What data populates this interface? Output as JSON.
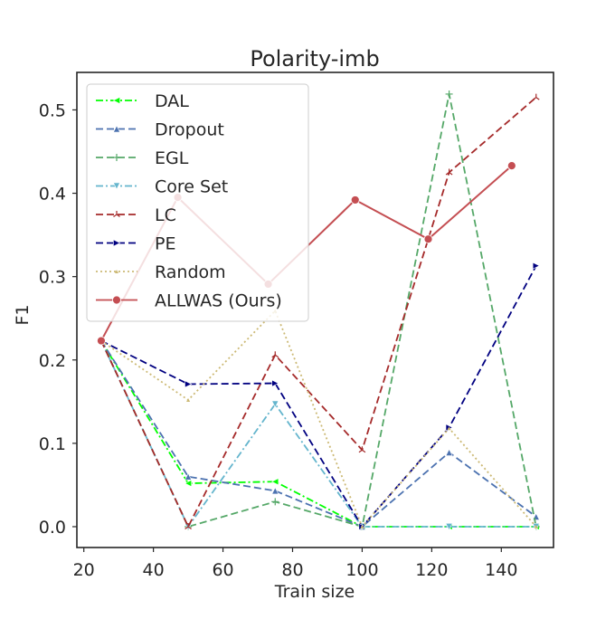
{
  "chart_data": {
    "type": "line",
    "title": "Polarity-imb",
    "xlabel": "Train size",
    "ylabel": "F1",
    "xlim": [
      18,
      155
    ],
    "ylim": [
      -0.025,
      0.545
    ],
    "xticks": [
      20,
      40,
      60,
      80,
      100,
      120,
      140
    ],
    "yticks": [
      0.0,
      0.1,
      0.2,
      0.3,
      0.4,
      0.5
    ],
    "ytick_labels": [
      "0.0",
      "0.1",
      "0.2",
      "0.3",
      "0.4",
      "0.5"
    ],
    "grid": false,
    "legend_position": "upper-left",
    "series": [
      {
        "name": "DAL",
        "color": "#00ff00",
        "dash": "dashdot",
        "marker": "triangle-left",
        "x": [
          25,
          50,
          75,
          100,
          125,
          150
        ],
        "y": [
          0.223,
          0.052,
          0.054,
          0.0,
          0.0,
          0.0
        ]
      },
      {
        "name": "Dropout",
        "color": "#4c72b0",
        "dash": "dashed",
        "marker": "triangle-up",
        "x": [
          25,
          50,
          75,
          100,
          125,
          150
        ],
        "y": [
          0.223,
          0.06,
          0.043,
          0.0,
          0.089,
          0.012
        ]
      },
      {
        "name": "EGL",
        "color": "#55a868",
        "dash": "dashed",
        "marker": "plus",
        "x": [
          25,
          50,
          75,
          100,
          125,
          150
        ],
        "y": [
          0.223,
          0.0,
          0.03,
          0.0,
          0.519,
          0.0
        ]
      },
      {
        "name": "Core Set",
        "color": "#64b5cd",
        "dash": "dashdot",
        "marker": "triangle-down",
        "x": [
          25,
          50,
          75,
          100,
          125,
          150
        ],
        "y": [
          0.223,
          0.0,
          0.147,
          0.0,
          0.0,
          0.0
        ]
      },
      {
        "name": "LC",
        "color": "#a52a2a",
        "dash": "dashed",
        "marker": "tri",
        "x": [
          25,
          50,
          75,
          100,
          125,
          150
        ],
        "y": [
          0.223,
          0.0,
          0.206,
          0.092,
          0.425,
          0.515
        ]
      },
      {
        "name": "PE",
        "color": "#000080",
        "dash": "dashed",
        "marker": "triangle-right",
        "x": [
          25,
          50,
          75,
          100,
          125,
          150
        ],
        "y": [
          0.223,
          0.171,
          0.172,
          0.0,
          0.119,
          0.313
        ]
      },
      {
        "name": "Random",
        "color": "#ccb974",
        "dash": "dotted",
        "marker": "small-triangle",
        "x": [
          25,
          50,
          75,
          100,
          125,
          150
        ],
        "y": [
          0.223,
          0.152,
          0.259,
          0.0,
          0.118,
          0.0
        ]
      },
      {
        "name": "ALLWAS (Ours)",
        "color": "#c44e52",
        "dash": "solid",
        "marker": "circle",
        "x": [
          25,
          47,
          73,
          98,
          119,
          143
        ],
        "y": [
          0.223,
          0.395,
          0.291,
          0.392,
          0.345,
          0.433
        ]
      }
    ]
  }
}
